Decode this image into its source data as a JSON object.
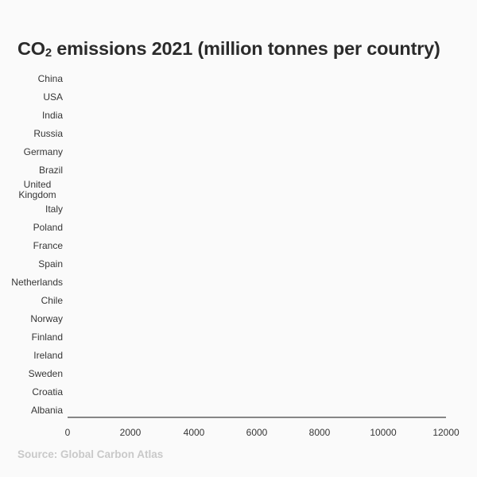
{
  "title": {
    "prefix": "CO",
    "subscript": "2",
    "rest": " emissions 2021 (million tonnes per country)"
  },
  "source": "Source: Global Carbon Atlas",
  "colors": {
    "background": "#fafafa",
    "title_text": "#2b2b2b",
    "axis_label_text": "#363636",
    "axis_line": "#868686",
    "source_text": "#c9c9c9"
  },
  "chart_data": {
    "type": "bar",
    "orientation": "horizontal",
    "title": "CO₂ emissions 2021 (million tonnes per country)",
    "categories": [
      "China",
      "USA",
      "India",
      "Russia",
      "Germany",
      "Brazil",
      "United Kingdom",
      "Italy",
      "Poland",
      "France",
      "Spain",
      "Netherlands",
      "Chile",
      "Norway",
      "Finland",
      "Ireland",
      "Sweden",
      "Croatia",
      "Albania"
    ],
    "values": null,
    "note": "Plot area is empty: no bars are drawn for any category; only category labels, the x axis line, and x tick labels are rendered.",
    "xlabel": "",
    "ylabel": "",
    "xlim": [
      0,
      12000
    ],
    "x_ticks": [
      0,
      2000,
      4000,
      6000,
      8000,
      10000,
      12000
    ],
    "grid": false,
    "legend": "none",
    "source": "Source: Global Carbon Atlas"
  }
}
